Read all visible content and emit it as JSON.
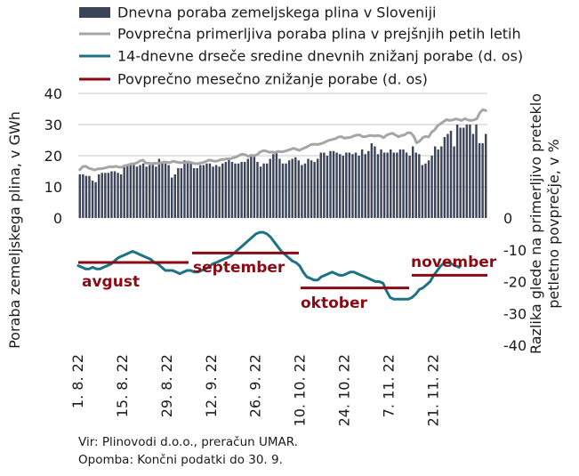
{
  "chart_data": {
    "type": "bar+line",
    "series": [
      {
        "name": "Dnevna poraba zemeljskega plina v Sloveniji",
        "type": "bar",
        "axis": "left",
        "color": "#3c4459",
        "values": [
          14,
          14,
          13.5,
          13.5,
          12,
          11.5,
          14,
          14.5,
          14.5,
          14.5,
          15,
          15,
          14.5,
          14,
          16.5,
          17,
          17.5,
          17.5,
          16.5,
          17,
          17.5,
          16.5,
          17,
          17.5,
          16.5,
          19,
          18,
          17.5,
          17,
          13,
          14,
          16,
          16,
          18.5,
          18,
          17.5,
          16,
          16,
          17,
          17,
          17.5,
          17.5,
          16.5,
          17,
          16.5,
          17.5,
          18,
          19,
          18,
          17.5,
          17.5,
          18,
          18,
          19,
          20,
          20,
          18,
          16.5,
          17.5,
          17.5,
          19,
          20.5,
          21,
          19,
          17.5,
          17.5,
          18.5,
          19,
          19.5,
          18.5,
          17,
          17.5,
          19,
          18.5,
          18,
          19,
          21,
          21,
          20,
          21.5,
          21.5,
          21,
          20.5,
          20,
          21,
          21,
          20.5,
          21,
          20,
          22,
          20.5,
          21.5,
          24,
          23,
          20.5,
          22,
          21,
          21,
          22,
          21,
          21,
          22,
          22,
          21,
          20,
          23,
          21,
          20.5,
          17,
          17.5,
          18.5,
          20,
          23,
          22,
          23,
          26,
          27,
          28,
          23,
          30,
          29,
          29,
          30,
          30,
          27,
          30,
          24,
          24,
          27
        ]
      },
      {
        "name": "Povprečna primerljiva poraba plina v prejšnjih petih letih",
        "type": "line",
        "axis": "left",
        "color": "#a6a6a6",
        "values": [
          15.5,
          16.5,
          16.6,
          16,
          15.7,
          15.4,
          15.8,
          15.8,
          16,
          16.2,
          16.5,
          16.4,
          16.6,
          16.3,
          16.3,
          16.8,
          17,
          17.3,
          17.4,
          17.7,
          18.3,
          18.6,
          17.6,
          17.6,
          17.4,
          17.6,
          17.5,
          17.7,
          18,
          17.9,
          17.8,
          18.2,
          18,
          17.8,
          17.8,
          17.8,
          18,
          17.8,
          17.5,
          17.4,
          17.6,
          17.8,
          18.2,
          18.6,
          18.4,
          18.2,
          18.4,
          18.8,
          18.8,
          19,
          19,
          19.3,
          19.6,
          20.1,
          20.5,
          20.3,
          19.8,
          20.1,
          20,
          20.4,
          21.2,
          21.6,
          21.5,
          21.1,
          21.2,
          21,
          21.4,
          21.2,
          21.4,
          21.7,
          22,
          22.4,
          22.1,
          21.7,
          22.2,
          22.6,
          23.1,
          23.6,
          23.7,
          23.6,
          23.8,
          24.1,
          24.6,
          25,
          25.2,
          25.5,
          26,
          26.1,
          25.6,
          25.8,
          25.9,
          26.3,
          26.6,
          26.7,
          26.1,
          26.1,
          26.4,
          26.5,
          26.3,
          26.5,
          26.3,
          25.8,
          26.6,
          27,
          27.2,
          26.6,
          26.1,
          26.5,
          26.7,
          27.4,
          27.3,
          26.3,
          24.1,
          24.7,
          25.8,
          26.2,
          26,
          27.6,
          28.3,
          29.7,
          30.3,
          31,
          31.6,
          31.3,
          31.5,
          31.8,
          31.6,
          31.3,
          31.9,
          31.5,
          31.3,
          31.5,
          31.9,
          33.8,
          34.8,
          34.5
        ]
      },
      {
        "name": "14-dnevne drseče sredine dnevnih znižanj porabe (d. os)",
        "type": "line",
        "axis": "right",
        "color": "#1d7383",
        "values": [
          -15,
          -15.5,
          -16,
          -16,
          -15.5,
          -16,
          -16,
          -15.5,
          -15,
          -14.5,
          -13.5,
          -12.5,
          -12,
          -11.5,
          -11,
          -10.5,
          -11,
          -11.5,
          -12,
          -12.5,
          -13,
          -14,
          -14.5,
          -15.5,
          -16.5,
          -16.5,
          -16.5,
          -17,
          -17.5,
          -17,
          -16.5,
          -16.5,
          -17,
          -17,
          -16.5,
          -16,
          -15.5,
          -14.5,
          -14,
          -13.5,
          -13,
          -12.5,
          -12,
          -11,
          -10,
          -9,
          -8,
          -7,
          -6,
          -5,
          -4.5,
          -4.5,
          -5,
          -6,
          -7.5,
          -9,
          -10.5,
          -11.5,
          -12.5,
          -13.5,
          -14,
          -15,
          -17,
          -18.5,
          -19,
          -19.5,
          -19.5,
          -18.5,
          -18,
          -17.5,
          -17,
          -17.5,
          -18,
          -18,
          -17.5,
          -17,
          -17,
          -17.5,
          -18,
          -18.5,
          -19,
          -19.5,
          -20,
          -20,
          -20.5,
          -23,
          -25,
          -25.5,
          -25.5,
          -25.5,
          -25.5,
          -25.5,
          -25,
          -24,
          -22.5,
          -22,
          -21,
          -20,
          -18,
          -16.5,
          -15,
          -14,
          -14,
          -14.5,
          -15,
          -15.5
        ]
      },
      {
        "name": "Povprečno mesečno znižanje porabe (d. os)",
        "type": "step",
        "axis": "right",
        "color": "#8b0a14",
        "segments": [
          {
            "label": "avgust",
            "value": -14
          },
          {
            "label": "september",
            "value": -11
          },
          {
            "label": "oktober",
            "value": -22
          },
          {
            "label": "november",
            "value": -18
          }
        ]
      }
    ],
    "x_ticks": [
      "1. 8. 22",
      "15. 8. 22",
      "29. 8. 22",
      "12. 9. 22",
      "26. 9. 22",
      "10. 10. 22",
      "24. 10. 22",
      "7. 11. 22",
      "21. 11. 22"
    ],
    "ylabel_left": "Poraba zemeljskega plina, v GWh",
    "ylabel_right": "Razlika glede na primerljivo preteklo petletno povprečje, v %",
    "yticks_left": [
      "0",
      "10",
      "20",
      "30",
      "40"
    ],
    "yticks_right": [
      "0",
      "-10",
      "-20",
      "-30",
      "-40"
    ],
    "ylim_left": [
      0,
      40
    ],
    "ylim_right": [
      -40,
      0
    ],
    "grid": true,
    "legend_position": "top"
  },
  "notes": {
    "source": "Vir: Plinovodi d.o.o., preračun UMAR.",
    "remark": "Opomba: Končni podatki do 30. 9."
  }
}
